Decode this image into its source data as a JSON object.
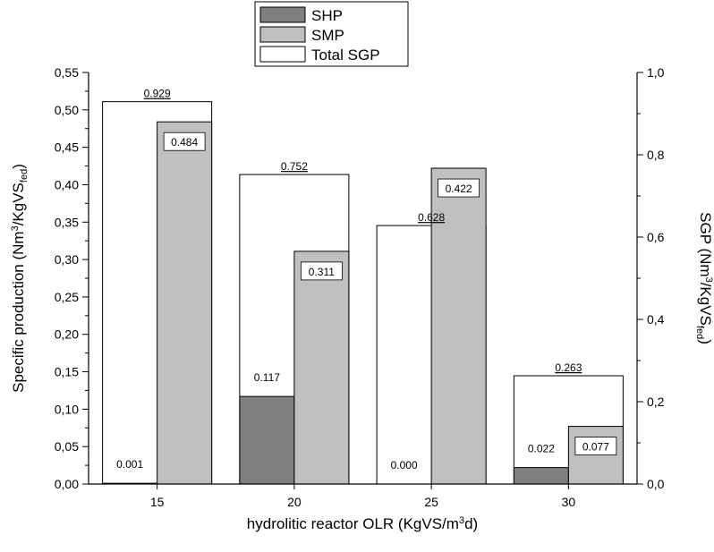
{
  "chart_data": {
    "type": "bar",
    "categories": [
      "15",
      "20",
      "25",
      "30"
    ],
    "series": [
      {
        "name": "SHP",
        "values": [
          0.001,
          0.117,
          0.0,
          0.022
        ],
        "labels": [
          "0.001",
          "0.117",
          "0.000",
          "0.022"
        ],
        "axis": "left",
        "color": "#7f7f7f"
      },
      {
        "name": "SMP",
        "values": [
          0.484,
          0.311,
          0.422,
          0.077
        ],
        "labels": [
          "0.484",
          "0.311",
          "0.422",
          "0.077"
        ],
        "axis": "left",
        "color": "#c0c0c0"
      },
      {
        "name": "Total SGP",
        "values": [
          0.929,
          0.752,
          0.628,
          0.263
        ],
        "labels": [
          "0.929",
          "0.752",
          "0.628",
          "0.263"
        ],
        "axis": "right",
        "color": "#ffffff"
      }
    ],
    "xlabel": "hydrolitic reactor OLR (KgVS/m3d)",
    "ylabel": "Specific production (Nm3/KgVSfed)",
    "ylabel_right": "SGP (Nm3/KgVSfed)",
    "ylim": [
      0,
      0.55
    ],
    "ylim_right": [
      0,
      1.0
    ],
    "yticks": [
      0,
      0.05,
      0.1,
      0.15,
      0.2,
      0.25,
      0.3,
      0.35,
      0.4,
      0.45,
      0.5,
      0.55
    ],
    "yticklabels": [
      "0,00",
      "0,05",
      "0,10",
      "0,15",
      "0,20",
      "0,25",
      "0,30",
      "0,35",
      "0,40",
      "0,45",
      "0,50",
      "0,55"
    ],
    "yticks_right": [
      0,
      0.2,
      0.4,
      0.6,
      0.8,
      1.0
    ],
    "yticklabels_right": [
      "0,0",
      "0,2",
      "0,4",
      "0,6",
      "0,8",
      "1,0"
    ],
    "grid": false,
    "legend_position": "top-center"
  }
}
